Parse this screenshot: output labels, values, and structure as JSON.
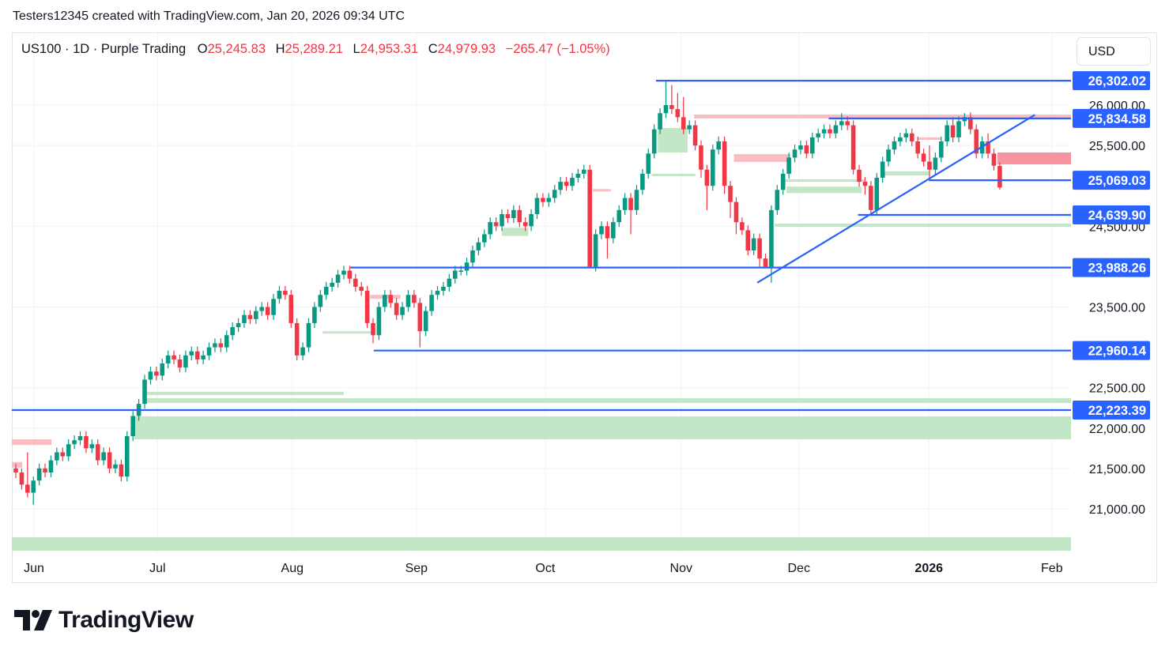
{
  "caption": "Testers12345 created with TradingView.com, Jan 20, 2026 09:34 UTC",
  "legend": {
    "symbol": "US100 · 1D · Purple Trading",
    "open_label": "O",
    "open": "25,245.83",
    "high_label": "H",
    "high": "25,289.21",
    "low_label": "L",
    "low": "24,953.31",
    "close_label": "C",
    "close": "24,979.93",
    "change": "−265.47 (−1.05%)"
  },
  "currency_button": "USD",
  "logo_text": "TradingView",
  "colors": {
    "up": "#089981",
    "down": "#f23645",
    "line": "#2962ff",
    "zone_green": "#bde3c0",
    "zone_pink": "#f9b6be",
    "zone_pink_dark": "#f58a95",
    "grid": "#f0f3fa"
  },
  "chart_data": {
    "type": "candlestick",
    "title": "US100 · 1D · Purple Trading",
    "ylim": [
      20400,
      26500
    ],
    "y_ticks": [
      {
        "value": 26000,
        "label": "26,000.00"
      },
      {
        "value": 25500,
        "label": "25,500.00"
      },
      {
        "value": 24500,
        "label": "24,500.00"
      },
      {
        "value": 23500,
        "label": "23,500.00"
      },
      {
        "value": 22500,
        "label": "22,500.00"
      },
      {
        "value": 22000,
        "label": "22,000.00"
      },
      {
        "value": 21500,
        "label": "21,500.00"
      },
      {
        "value": 21000,
        "label": "21,000.00"
      }
    ],
    "x_ticks": [
      {
        "bar": 3.1,
        "label": "Jun",
        "bold": false
      },
      {
        "bar": 24.2,
        "label": "Jul",
        "bold": false
      },
      {
        "bar": 47.2,
        "label": "Aug",
        "bold": false
      },
      {
        "bar": 68.4,
        "label": "Sep",
        "bold": false
      },
      {
        "bar": 90.4,
        "label": "Oct",
        "bold": false
      },
      {
        "bar": 113.6,
        "label": "Nov",
        "bold": false
      },
      {
        "bar": 133.7,
        "label": "Dec",
        "bold": false
      },
      {
        "bar": 155.9,
        "label": "2026",
        "bold": true
      },
      {
        "bar": 176.9,
        "label": "Feb",
        "bold": false
      }
    ],
    "xlim_bars": [
      -0.7,
      180.2
    ],
    "candles_ohlc": [
      [
        21500,
        21560,
        21380,
        21450
      ],
      [
        21450,
        21500,
        21240,
        21300
      ],
      [
        21300,
        21700,
        21140,
        21200
      ],
      [
        21200,
        21400,
        21050,
        21350
      ],
      [
        21350,
        21560,
        21290,
        21500
      ],
      [
        21500,
        21560,
        21390,
        21450
      ],
      [
        21450,
        21660,
        21390,
        21600
      ],
      [
        21600,
        21760,
        21540,
        21700
      ],
      [
        21700,
        21760,
        21590,
        21650
      ],
      [
        21650,
        21860,
        21590,
        21800
      ],
      [
        21800,
        21910,
        21740,
        21850
      ],
      [
        21850,
        21960,
        21790,
        21900
      ],
      [
        21900,
        21960,
        21690,
        21750
      ],
      [
        21750,
        21860,
        21690,
        21800
      ],
      [
        21800,
        21860,
        21540,
        21600
      ],
      [
        21600,
        21760,
        21540,
        21700
      ],
      [
        21700,
        21760,
        21440,
        21500
      ],
      [
        21500,
        21610,
        21440,
        21550
      ],
      [
        21550,
        21610,
        21340,
        21400
      ],
      [
        21400,
        21960,
        21340,
        21900
      ],
      [
        21900,
        22210,
        21840,
        22150
      ],
      [
        22150,
        22360,
        22090,
        22300
      ],
      [
        22300,
        22660,
        22240,
        22600
      ],
      [
        22600,
        22760,
        22540,
        22700
      ],
      [
        22700,
        22760,
        22590,
        22650
      ],
      [
        22650,
        22860,
        22590,
        22800
      ],
      [
        22800,
        22960,
        22740,
        22900
      ],
      [
        22900,
        22960,
        22790,
        22850
      ],
      [
        22850,
        22910,
        22690,
        22750
      ],
      [
        22750,
        22960,
        22690,
        22900
      ],
      [
        22900,
        23010,
        22840,
        22950
      ],
      [
        22950,
        23010,
        22790,
        22850
      ],
      [
        22850,
        22960,
        22790,
        22900
      ],
      [
        22900,
        23060,
        22840,
        23000
      ],
      [
        23000,
        23110,
        22940,
        23050
      ],
      [
        23050,
        23110,
        22940,
        23000
      ],
      [
        23000,
        23210,
        22940,
        23150
      ],
      [
        23150,
        23310,
        23090,
        23250
      ],
      [
        23250,
        23360,
        23190,
        23300
      ],
      [
        23300,
        23460,
        23240,
        23400
      ],
      [
        23400,
        23460,
        23290,
        23350
      ],
      [
        23350,
        23510,
        23290,
        23450
      ],
      [
        23450,
        23560,
        23390,
        23500
      ],
      [
        23500,
        23560,
        23340,
        23400
      ],
      [
        23400,
        23660,
        23340,
        23600
      ],
      [
        23600,
        23760,
        23540,
        23700
      ],
      [
        23700,
        23760,
        23590,
        23650
      ],
      [
        23650,
        23710,
        23240,
        23300
      ],
      [
        23300,
        23360,
        22840,
        22900
      ],
      [
        22900,
        23060,
        22840,
        23000
      ],
      [
        23000,
        23360,
        22940,
        23300
      ],
      [
        23300,
        23560,
        23240,
        23500
      ],
      [
        23500,
        23710,
        23440,
        23650
      ],
      [
        23650,
        23810,
        23590,
        23750
      ],
      [
        23750,
        23860,
        23690,
        23800
      ],
      [
        23800,
        23960,
        23740,
        23900
      ],
      [
        23900,
        24010,
        23840,
        23950
      ],
      [
        23950,
        24010,
        23790,
        23850
      ],
      [
        23850,
        23910,
        23690,
        23750
      ],
      [
        23750,
        23810,
        23640,
        23700
      ],
      [
        23700,
        23760,
        23240,
        23300
      ],
      [
        23300,
        23360,
        23050,
        23150
      ],
      [
        23150,
        23560,
        23090,
        23500
      ],
      [
        23500,
        23710,
        23440,
        23650
      ],
      [
        23650,
        23710,
        23490,
        23550
      ],
      [
        23550,
        23610,
        23340,
        23400
      ],
      [
        23400,
        23560,
        23340,
        23500
      ],
      [
        23500,
        23710,
        23440,
        23650
      ],
      [
        23650,
        23710,
        23490,
        23550
      ],
      [
        23550,
        23610,
        23000,
        23200
      ],
      [
        23200,
        23510,
        23140,
        23450
      ],
      [
        23450,
        23710,
        23390,
        23650
      ],
      [
        23650,
        23760,
        23590,
        23700
      ],
      [
        23700,
        23810,
        23640,
        23750
      ],
      [
        23750,
        23910,
        23690,
        23850
      ],
      [
        23850,
        24010,
        23790,
        23950
      ],
      [
        23950,
        24010,
        23890,
        23950
      ],
      [
        23950,
        24110,
        23890,
        24050
      ],
      [
        24050,
        24260,
        23990,
        24200
      ],
      [
        24200,
        24360,
        24140,
        24300
      ],
      [
        24300,
        24460,
        24240,
        24400
      ],
      [
        24400,
        24610,
        24340,
        24550
      ],
      [
        24550,
        24610,
        24440,
        24500
      ],
      [
        24500,
        24710,
        24440,
        24650
      ],
      [
        24650,
        24710,
        24540,
        24600
      ],
      [
        24600,
        24760,
        24540,
        24700
      ],
      [
        24700,
        24760,
        24490,
        24550
      ],
      [
        24550,
        24610,
        24440,
        24500
      ],
      [
        24500,
        24710,
        24440,
        24650
      ],
      [
        24650,
        24910,
        24590,
        24850
      ],
      [
        24850,
        24910,
        24740,
        24800
      ],
      [
        24800,
        24910,
        24740,
        24850
      ],
      [
        24850,
        25010,
        24790,
        24950
      ],
      [
        24950,
        25110,
        24890,
        25050
      ],
      [
        25050,
        25110,
        24940,
        25000
      ],
      [
        25000,
        25160,
        24940,
        25100
      ],
      [
        25100,
        25210,
        25040,
        25150
      ],
      [
        25150,
        25260,
        25090,
        25200
      ],
      [
        25200,
        25260,
        23988,
        24000
      ],
      [
        24000,
        24460,
        23940,
        24400
      ],
      [
        24400,
        24560,
        24340,
        24500
      ],
      [
        24500,
        24560,
        24100,
        24350
      ],
      [
        24350,
        24610,
        24290,
        24550
      ],
      [
        24550,
        24760,
        24490,
        24700
      ],
      [
        24700,
        24910,
        24640,
        24850
      ],
      [
        24850,
        24910,
        24400,
        24700
      ],
      [
        24700,
        25010,
        24640,
        24950
      ],
      [
        24950,
        25210,
        24890,
        25150
      ],
      [
        25150,
        25460,
        25090,
        25400
      ],
      [
        25400,
        25760,
        25340,
        25700
      ],
      [
        25700,
        25960,
        25640,
        25900
      ],
      [
        25900,
        26302,
        25840,
        26000
      ],
      [
        26000,
        26250,
        25890,
        25950
      ],
      [
        25950,
        26150,
        25790,
        25850
      ],
      [
        25850,
        26100,
        25640,
        25700
      ],
      [
        25700,
        25810,
        25640,
        25750
      ],
      [
        25750,
        25810,
        25440,
        25500
      ],
      [
        25500,
        25560,
        25100,
        25200
      ],
      [
        25200,
        25260,
        24700,
        25000
      ],
      [
        25000,
        25510,
        24940,
        25450
      ],
      [
        25450,
        25610,
        25390,
        25550
      ],
      [
        25550,
        25610,
        24900,
        25000
      ],
      [
        25000,
        25060,
        24600,
        24800
      ],
      [
        24800,
        24860,
        24400,
        24550
      ],
      [
        24550,
        24610,
        24390,
        24450
      ],
      [
        24450,
        24510,
        24140,
        24200
      ],
      [
        24200,
        24410,
        24140,
        24350
      ],
      [
        24350,
        24410,
        23990,
        24100
      ],
      [
        24100,
        24160,
        23988,
        24000
      ],
      [
        24000,
        24760,
        23800,
        24700
      ],
      [
        24700,
        25010,
        24640,
        24950
      ],
      [
        24950,
        25210,
        24890,
        25150
      ],
      [
        25150,
        25410,
        25090,
        25350
      ],
      [
        25350,
        25510,
        25290,
        25450
      ],
      [
        25450,
        25560,
        25390,
        25500
      ],
      [
        25500,
        25560,
        25340,
        25400
      ],
      [
        25400,
        25660,
        25340,
        25600
      ],
      [
        25600,
        25710,
        25540,
        25650
      ],
      [
        25650,
        25760,
        25590,
        25700
      ],
      [
        25700,
        25760,
        25590,
        25650
      ],
      [
        25650,
        25810,
        25590,
        25750
      ],
      [
        25750,
        25900,
        25690,
        25800
      ],
      [
        25800,
        25860,
        25690,
        25750
      ],
      [
        25750,
        25810,
        25140,
        25200
      ],
      [
        25200,
        25260,
        24990,
        25050
      ],
      [
        25050,
        25110,
        24890,
        25000
      ],
      [
        25000,
        25060,
        24640,
        24700
      ],
      [
        24700,
        25160,
        24640,
        25100
      ],
      [
        25100,
        25360,
        25040,
        25300
      ],
      [
        25300,
        25510,
        25240,
        25450
      ],
      [
        25450,
        25610,
        25390,
        25550
      ],
      [
        25550,
        25660,
        25490,
        25600
      ],
      [
        25600,
        25710,
        25540,
        25650
      ],
      [
        25650,
        25710,
        25490,
        25550
      ],
      [
        25550,
        25610,
        25340,
        25400
      ],
      [
        25400,
        25460,
        25240,
        25300
      ],
      [
        25300,
        25500,
        25069,
        25200
      ],
      [
        25200,
        25410,
        25140,
        25350
      ],
      [
        25350,
        25610,
        25290,
        25550
      ],
      [
        25550,
        25810,
        25490,
        25750
      ],
      [
        25750,
        25850,
        25540,
        25600
      ],
      [
        25600,
        25860,
        25540,
        25800
      ],
      [
        25800,
        25900,
        25740,
        25850
      ],
      [
        25850,
        25910,
        25640,
        25700
      ],
      [
        25700,
        25760,
        25340,
        25400
      ],
      [
        25400,
        25610,
        25340,
        25550
      ],
      [
        25550,
        25650,
        25340,
        25400
      ],
      [
        25400,
        25460,
        25190,
        25250
      ],
      [
        25245.83,
        25289.21,
        24953.31,
        24979.93
      ]
    ],
    "horizontal_levels": [
      {
        "price": 26302.02,
        "label": "26,302.02",
        "from_bar": 109.3
      },
      {
        "price": 25834.58,
        "label": "25,834.58",
        "from_bar": 138.8
      },
      {
        "price": 25069.03,
        "label": "25,069.03",
        "from_bar": 155.9
      },
      {
        "price": 24639.9,
        "label": "24,639.90",
        "from_bar": 143.8
      },
      {
        "price": 23988.26,
        "label": "23,988.26",
        "from_bar": 57.1
      },
      {
        "price": 22960.14,
        "label": "22,960.14",
        "from_bar": 61.1
      },
      {
        "price": 22223.39,
        "label": "22,223.39",
        "from_bar": -0.7
      }
    ],
    "trendline": {
      "from": {
        "bar": 126.6,
        "price": 23800
      },
      "to": {
        "bar": 174,
        "price": 25880
      }
    },
    "zones": [
      {
        "kind": "green",
        "from_bar": 20.2,
        "to_bar": "right",
        "top": 22145,
        "bottom": 21861
      },
      {
        "kind": "green",
        "from_bar": 22,
        "to_bar": "right",
        "top": 22370,
        "bottom": 22310
      },
      {
        "kind": "green",
        "from_bar": -0.7,
        "to_bar": "right",
        "top": 20648,
        "bottom": 20481
      },
      {
        "kind": "green",
        "from_bar": 129.6,
        "to_bar": "right",
        "top": 24532,
        "bottom": 24493
      },
      {
        "kind": "green",
        "from_bar": 131.6,
        "to_bar": 144.4,
        "top": 24990,
        "bottom": 24910
      },
      {
        "kind": "green",
        "from_bar": 130.6,
        "to_bar": 145,
        "top": 25080,
        "bottom": 25050
      },
      {
        "kind": "green",
        "from_bar": 148,
        "to_bar": 156,
        "top": 25180,
        "bottom": 25130
      },
      {
        "kind": "green",
        "from_bar": 109.6,
        "to_bar": 114.7,
        "top": 25716,
        "bottom": 25413
      },
      {
        "kind": "green",
        "from_bar": 108.6,
        "to_bar": 116,
        "top": 25150,
        "bottom": 25120
      },
      {
        "kind": "green",
        "from_bar": 22,
        "to_bar": 56,
        "top": 22450,
        "bottom": 22410
      },
      {
        "kind": "green",
        "from_bar": 52.4,
        "to_bar": 61,
        "top": 23200,
        "bottom": 23170
      },
      {
        "kind": "green",
        "from_bar": 83,
        "to_bar": 87.5,
        "top": 24480,
        "bottom": 24380
      },
      {
        "kind": "pink",
        "from_bar": 115.8,
        "to_bar": "right",
        "top": 25883,
        "bottom": 25834
      },
      {
        "kind": "pink",
        "from_bar": 122.6,
        "to_bar": 132.3,
        "top": 25393,
        "bottom": 25296
      },
      {
        "kind": "pink_dark",
        "from_bar": 167.6,
        "to_bar": "right",
        "top": 25413,
        "bottom": 25266
      },
      {
        "kind": "pink",
        "from_bar": -0.7,
        "to_bar": 6.1,
        "top": 21861,
        "bottom": 21792
      },
      {
        "kind": "pink",
        "from_bar": -0.7,
        "to_bar": 1.1,
        "top": 21580,
        "bottom": 21510
      },
      {
        "kind": "pink",
        "from_bar": 60.5,
        "to_bar": 65.7,
        "top": 23650,
        "bottom": 23600
      },
      {
        "kind": "pink",
        "from_bar": 98.5,
        "to_bar": 101.6,
        "top": 24960,
        "bottom": 24930
      },
      {
        "kind": "pink",
        "from_bar": 154,
        "to_bar": 158,
        "top": 25600,
        "bottom": 25570
      }
    ]
  }
}
